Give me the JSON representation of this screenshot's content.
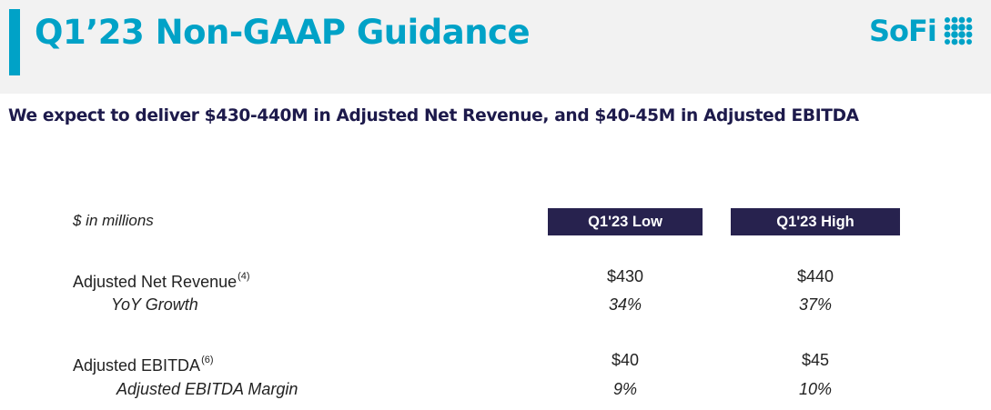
{
  "header": {
    "title": "Q1’23 Non-GAAP Guidance",
    "logo_text": "SoFi",
    "logo_icon": "sofi-dots-icon",
    "accent_color": "#00a2c7"
  },
  "subtitle": "We expect to deliver $430-440M in Adjusted Net Revenue, and $40-45M in Adjusted EBITDA",
  "table": {
    "units_label": "$ in millions",
    "columns": [
      "Q1'23 Low",
      "Q1'23 High"
    ],
    "header_color": "#27224e",
    "rows": [
      {
        "label": "Adjusted Net Revenue",
        "footnote": "(4)",
        "low": "$430",
        "high": "$440"
      },
      {
        "label": "YoY Growth",
        "low": "34%",
        "high": "37%"
      },
      {
        "label": "Adjusted EBITDA",
        "footnote": "(6)",
        "low": "$40",
        "high": "$45"
      },
      {
        "label": "Adjusted EBITDA Margin",
        "low": "9%",
        "high": "10%"
      }
    ]
  }
}
